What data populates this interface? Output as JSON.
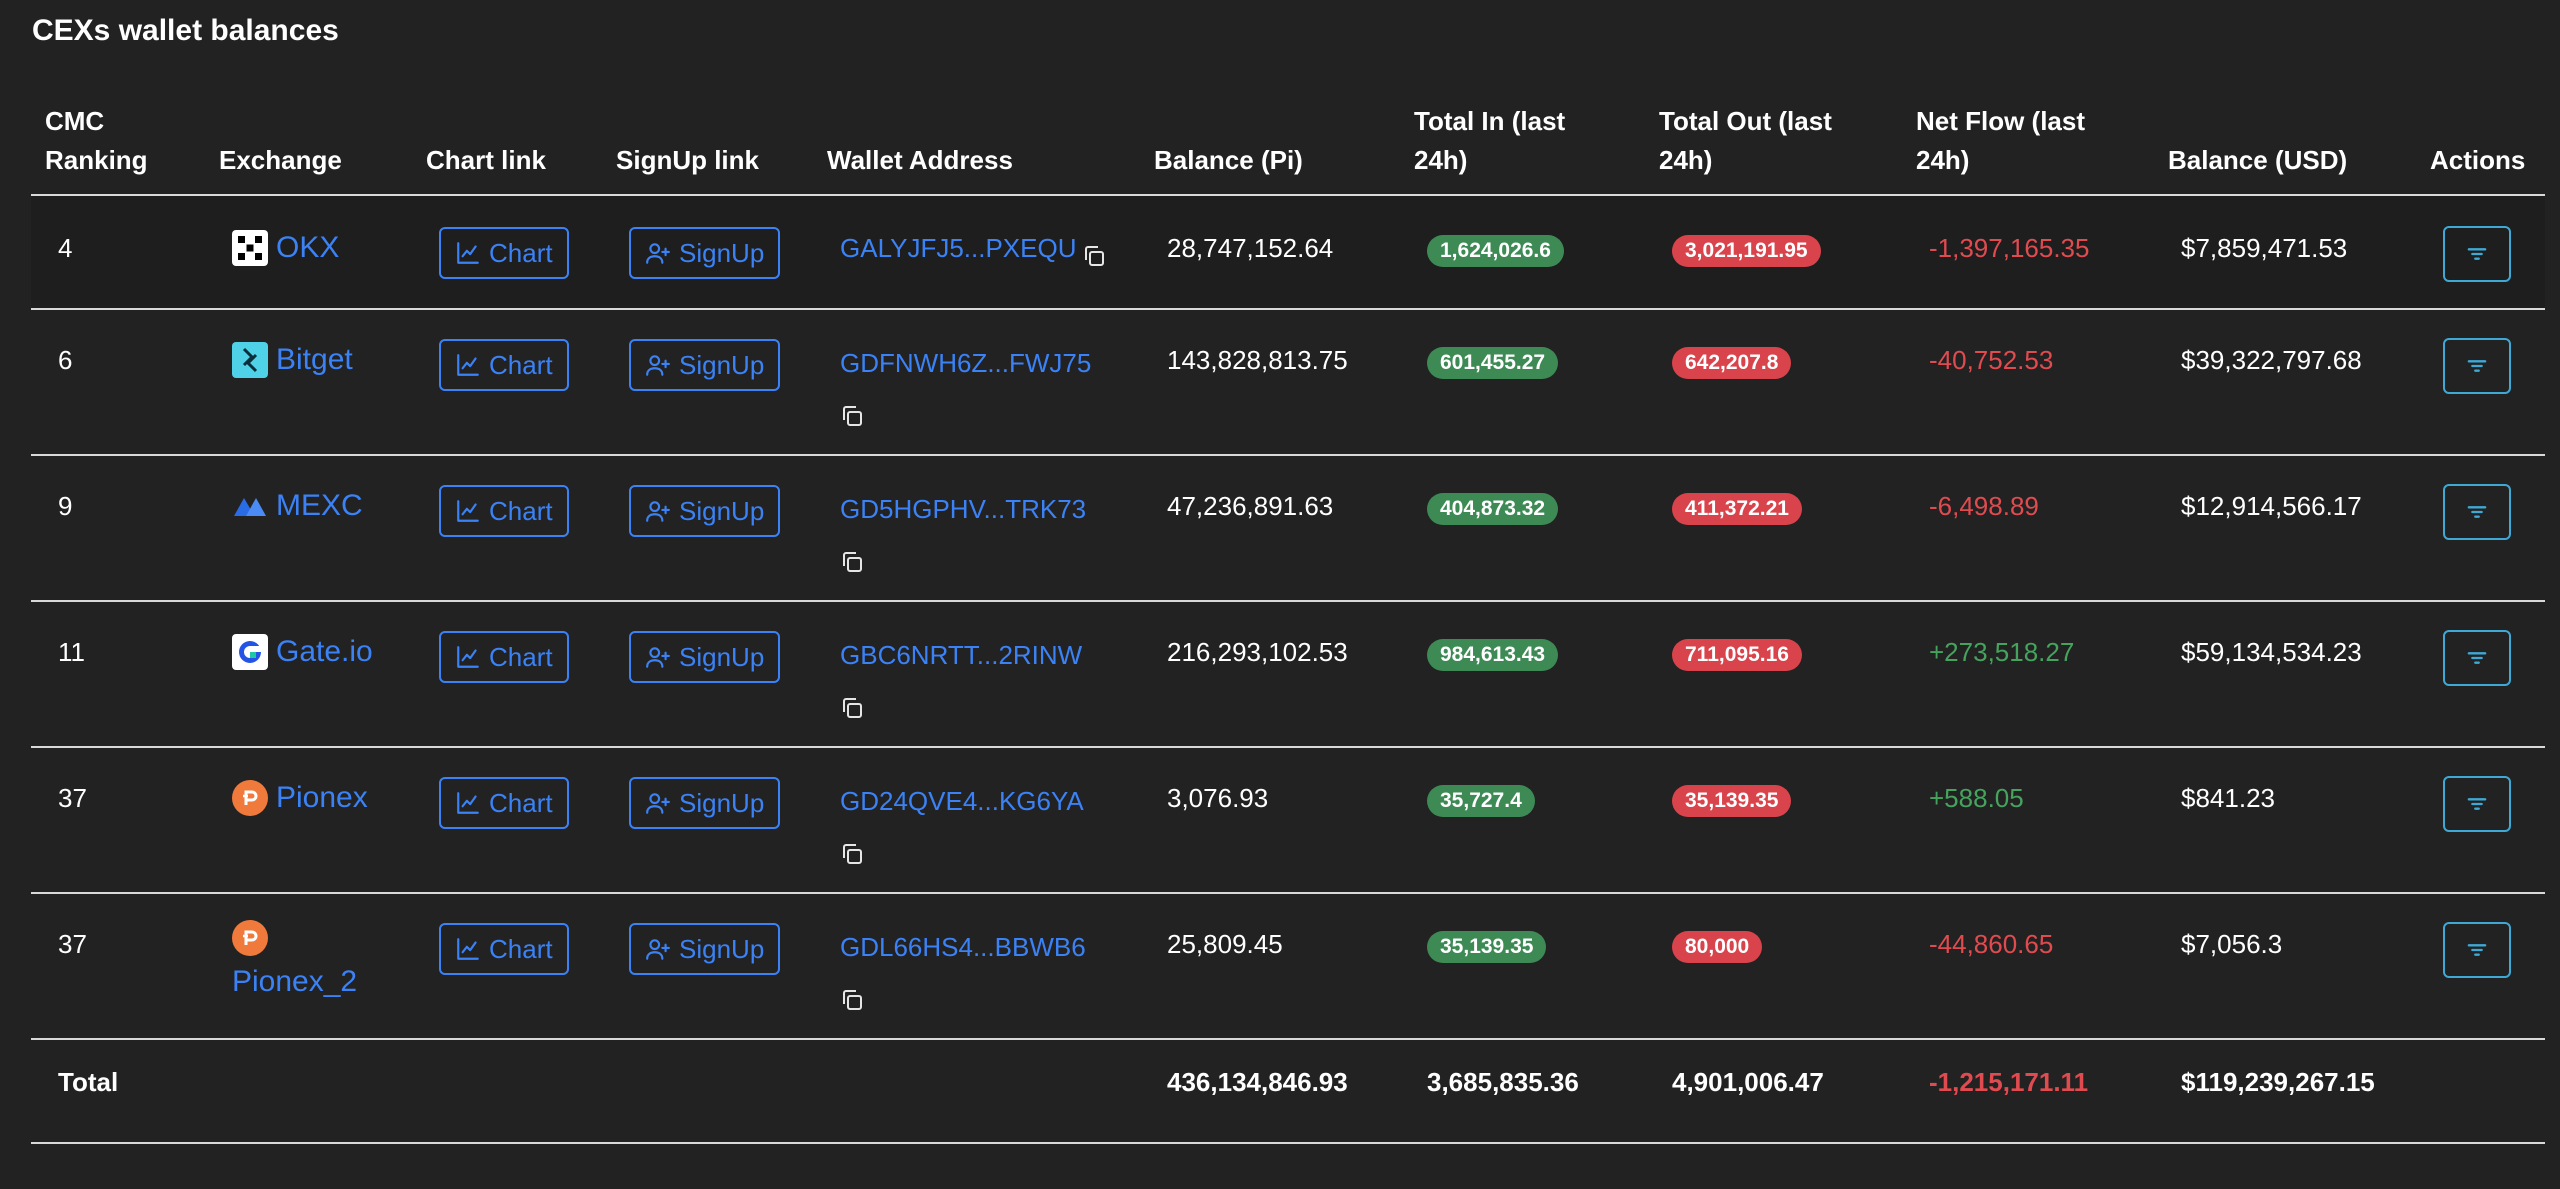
{
  "title": "CEXs wallet balances",
  "columns": {
    "rank": [
      "CMC",
      "Ranking"
    ],
    "exchange": "Exchange",
    "chart": "Chart link",
    "signup": "SignUp link",
    "wallet": "Wallet Address",
    "balance_pi": "Balance (Pi)",
    "total_in": [
      "Total In (last",
      "24h)"
    ],
    "total_out": [
      "Total Out (last",
      "24h)"
    ],
    "net_flow": [
      "Net Flow (last",
      "24h)"
    ],
    "balance_usd": "Balance (USD)",
    "actions": "Actions"
  },
  "buttons": {
    "chart_label": "Chart",
    "signup_label": "SignUp"
  },
  "colors": {
    "link": "#3b82f6",
    "positive": "#45a35d",
    "negative": "#e04b50",
    "badge_green": "#3d8a55",
    "badge_red": "#d9434b"
  },
  "rows": [
    {
      "rank": "4",
      "exchange": "OKX",
      "logo_icon": "okx-logo-icon",
      "wallet": "GALYJFJ5...PXEQU",
      "balance_pi": "28,747,152.64",
      "total_in": "1,624,026.6",
      "total_out": "3,021,191.95",
      "net_flow": "-1,397,165.35",
      "net_sign": "neg",
      "balance_usd": "$7,859,471.53"
    },
    {
      "rank": "6",
      "exchange": "Bitget",
      "logo_icon": "bitget-logo-icon",
      "wallet": "GDFNWH6Z...FWJ75",
      "balance_pi": "143,828,813.75",
      "total_in": "601,455.27",
      "total_out": "642,207.8",
      "net_flow": "-40,752.53",
      "net_sign": "neg",
      "balance_usd": "$39,322,797.68"
    },
    {
      "rank": "9",
      "exchange": "MEXC",
      "logo_icon": "mexc-logo-icon",
      "wallet": "GD5HGPHV...TRK73",
      "balance_pi": "47,236,891.63",
      "total_in": "404,873.32",
      "total_out": "411,372.21",
      "net_flow": "-6,498.89",
      "net_sign": "neg",
      "balance_usd": "$12,914,566.17"
    },
    {
      "rank": "11",
      "exchange": "Gate.io",
      "logo_icon": "gateio-logo-icon",
      "wallet": "GBC6NRTT...2RINW",
      "balance_pi": "216,293,102.53",
      "total_in": "984,613.43",
      "total_out": "711,095.16",
      "net_flow": "+273,518.27",
      "net_sign": "pos",
      "balance_usd": "$59,134,534.23"
    },
    {
      "rank": "37",
      "exchange": "Pionex",
      "logo_icon": "pionex-logo-icon",
      "wallet": "GD24QVE4...KG6YA",
      "balance_pi": "3,076.93",
      "total_in": "35,727.4",
      "total_out": "35,139.35",
      "net_flow": "+588.05",
      "net_sign": "pos",
      "balance_usd": "$841.23"
    },
    {
      "rank": "37",
      "exchange": "Pionex_2",
      "logo_icon": "pionex-logo-icon",
      "wallet": "GDL66HS4...BBWB6",
      "balance_pi": "25,809.45",
      "total_in": "35,139.35",
      "total_out": "80,000",
      "net_flow": "-44,860.65",
      "net_sign": "neg",
      "balance_usd": "$7,056.3"
    }
  ],
  "total": {
    "label": "Total",
    "balance_pi": "436,134,846.93",
    "total_in": "3,685,835.36",
    "total_out": "4,901,006.47",
    "net_flow": "-1,215,171.11",
    "balance_usd": "$119,239,267.15"
  }
}
